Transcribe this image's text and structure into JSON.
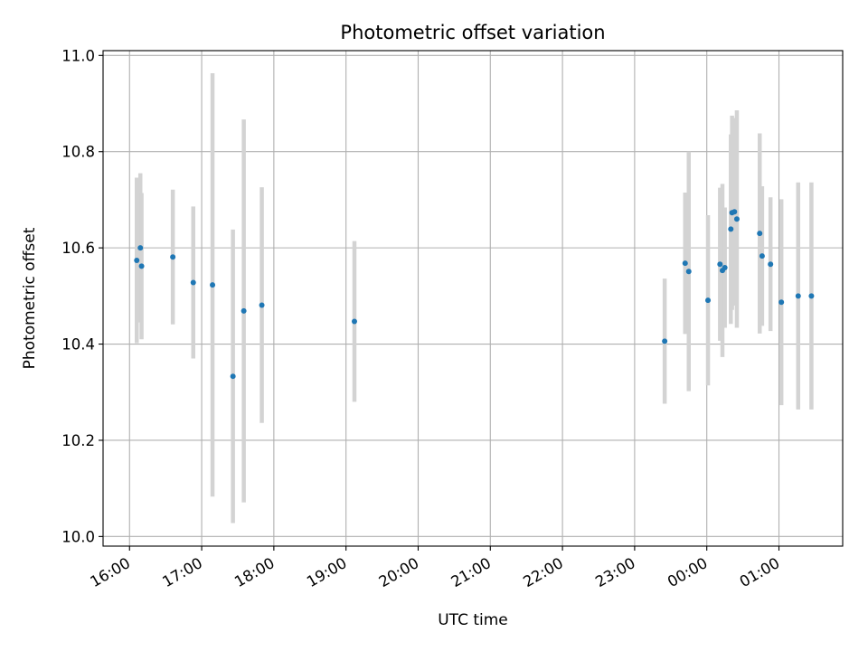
{
  "chart_data": {
    "type": "scatter",
    "title": "Photometric offset variation",
    "xlabel": "UTC time",
    "ylabel": "Photometric offset",
    "x_unit": "UTC time (HH:MM)",
    "xlim": [
      "15:38",
      "01:53"
    ],
    "ylim": [
      9.98,
      11.01
    ],
    "grid": true,
    "x_ticks": [
      "16:00",
      "17:00",
      "18:00",
      "19:00",
      "20:00",
      "21:00",
      "22:00",
      "23:00",
      "00:00",
      "01:00"
    ],
    "y_ticks": [
      "10.0",
      "10.2",
      "10.4",
      "10.6",
      "10.8",
      "11.0"
    ],
    "colors": {
      "points": "#1f77b4",
      "errorbars": "#d3d3d3",
      "grid": "#b0b0b0"
    },
    "points": [
      {
        "x": "16:06",
        "y": 10.574,
        "err": 0.172
      },
      {
        "x": "16:09",
        "y": 10.6,
        "err": 0.155
      },
      {
        "x": "16:10",
        "y": 10.562,
        "err": 0.152
      },
      {
        "x": "16:36",
        "y": 10.581,
        "err": 0.14
      },
      {
        "x": "16:53",
        "y": 10.528,
        "err": 0.158
      },
      {
        "x": "17:09",
        "y": 10.523,
        "err": 0.44
      },
      {
        "x": "17:26",
        "y": 10.333,
        "err": 0.305
      },
      {
        "x": "17:35",
        "y": 10.469,
        "err": 0.398
      },
      {
        "x": "17:50",
        "y": 10.481,
        "err": 0.245
      },
      {
        "x": "19:07",
        "y": 10.447,
        "err": 0.167
      },
      {
        "x": "23:25",
        "y": 10.406,
        "err": 0.13
      },
      {
        "x": "23:42",
        "y": 10.568,
        "err": 0.147
      },
      {
        "x": "23:45",
        "y": 10.551,
        "err": 0.249
      },
      {
        "x": "24:01",
        "y": 10.491,
        "err": 0.177
      },
      {
        "x": "24:11",
        "y": 10.566,
        "err": 0.159
      },
      {
        "x": "24:13",
        "y": 10.553,
        "err": 0.18
      },
      {
        "x": "24:15",
        "y": 10.559,
        "err": 0.125
      },
      {
        "x": "24:20",
        "y": 10.639,
        "err": 0.197
      },
      {
        "x": "24:21",
        "y": 10.673,
        "err": 0.202
      },
      {
        "x": "24:23",
        "y": 10.675,
        "err": 0.195
      },
      {
        "x": "24:25",
        "y": 10.66,
        "err": 0.226
      },
      {
        "x": "24:44",
        "y": 10.63,
        "err": 0.208
      },
      {
        "x": "24:46",
        "y": 10.583,
        "err": 0.145
      },
      {
        "x": "24:53",
        "y": 10.566,
        "err": 0.139
      },
      {
        "x": "25:02",
        "y": 10.487,
        "err": 0.214
      },
      {
        "x": "25:16",
        "y": 10.5,
        "err": 0.236
      },
      {
        "x": "25:27",
        "y": 10.5,
        "err": 0.236
      }
    ]
  }
}
